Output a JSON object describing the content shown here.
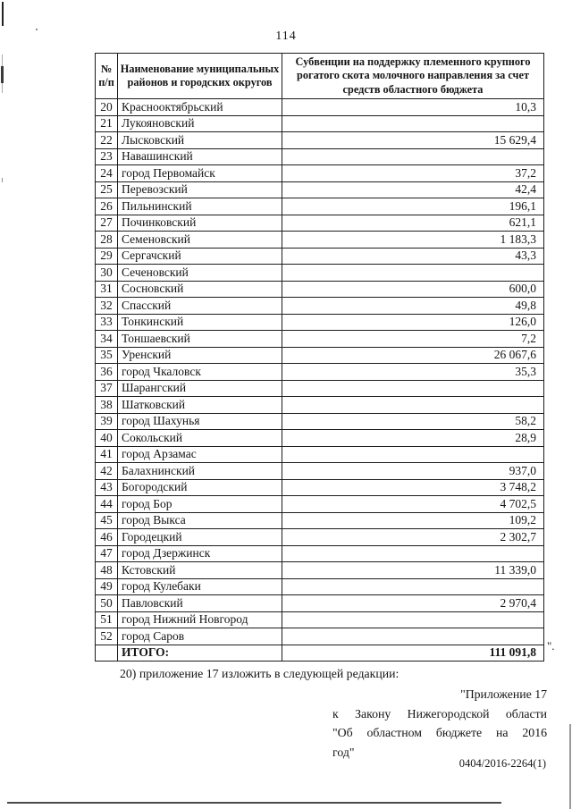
{
  "page": {
    "number": "114"
  },
  "table": {
    "headers": [
      "№\nп/п",
      "Наименование муниципальных районов и городских округов",
      "Субвенции на поддержку племенного крупного рогатого скота молочного направления за счет средств областного бюджета"
    ],
    "rows": [
      {
        "num": "20",
        "name": "Краснооктябрьский",
        "value": "10,3"
      },
      {
        "num": "21",
        "name": "Лукояновский",
        "value": ""
      },
      {
        "num": "22",
        "name": "Лысковский",
        "value": "15 629,4"
      },
      {
        "num": "23",
        "name": "Навашинский",
        "value": ""
      },
      {
        "num": "24",
        "name": "город Первомайск",
        "value": "37,2"
      },
      {
        "num": "25",
        "name": "Перевозский",
        "value": "42,4"
      },
      {
        "num": "26",
        "name": "Пильнинский",
        "value": "196,1"
      },
      {
        "num": "27",
        "name": "Починковский",
        "value": "621,1"
      },
      {
        "num": "28",
        "name": "Семеновский",
        "value": "1 183,3"
      },
      {
        "num": "29",
        "name": "Сергачский",
        "value": "43,3"
      },
      {
        "num": "30",
        "name": "Сеченовский",
        "value": ""
      },
      {
        "num": "31",
        "name": "Сосновский",
        "value": "600,0"
      },
      {
        "num": "32",
        "name": "Спасский",
        "value": "49,8"
      },
      {
        "num": "33",
        "name": "Тонкинский",
        "value": "126,0"
      },
      {
        "num": "34",
        "name": "Тоншаевский",
        "value": "7,2"
      },
      {
        "num": "35",
        "name": "Уренский",
        "value": "26 067,6"
      },
      {
        "num": "36",
        "name": "город Чкаловск",
        "value": "35,3"
      },
      {
        "num": "37",
        "name": "Шарангский",
        "value": ""
      },
      {
        "num": "38",
        "name": "Шатковский",
        "value": ""
      },
      {
        "num": "39",
        "name": "город Шахунья",
        "value": "58,2"
      },
      {
        "num": "40",
        "name": "Сокольский",
        "value": "28,9"
      },
      {
        "num": "41",
        "name": "город Арзамас",
        "value": ""
      },
      {
        "num": "42",
        "name": "Балахнинский",
        "value": "937,0"
      },
      {
        "num": "43",
        "name": "Богородский",
        "value": "3 748,2"
      },
      {
        "num": "44",
        "name": "город Бор",
        "value": "4 702,5"
      },
      {
        "num": "45",
        "name": "город Выкса",
        "value": "109,2"
      },
      {
        "num": "46",
        "name": "Городецкий",
        "value": "2 302,7"
      },
      {
        "num": "47",
        "name": "город Дзержинск",
        "value": ""
      },
      {
        "num": "48",
        "name": "Кстовский",
        "value": "11 339,0"
      },
      {
        "num": "49",
        "name": "город Кулебаки",
        "value": ""
      },
      {
        "num": "50",
        "name": "Павловский",
        "value": "2 970,4"
      },
      {
        "num": "51",
        "name": "город Нижний Новгород",
        "value": ""
      },
      {
        "num": "52",
        "name": "город Саров",
        "value": ""
      }
    ],
    "total": {
      "label": "ИТОГО:",
      "value": "111 091,8"
    },
    "closing_mark": "\"."
  },
  "paragraph": "20) приложение 17 изложить в следующей редакции:",
  "annex": {
    "lines": [
      "\"Приложение 17",
      "к Закону Нижегородской области",
      "\"Об областном бюджете на 2016",
      "год\""
    ]
  },
  "doc_code": "0404/2016-2264(1)"
}
